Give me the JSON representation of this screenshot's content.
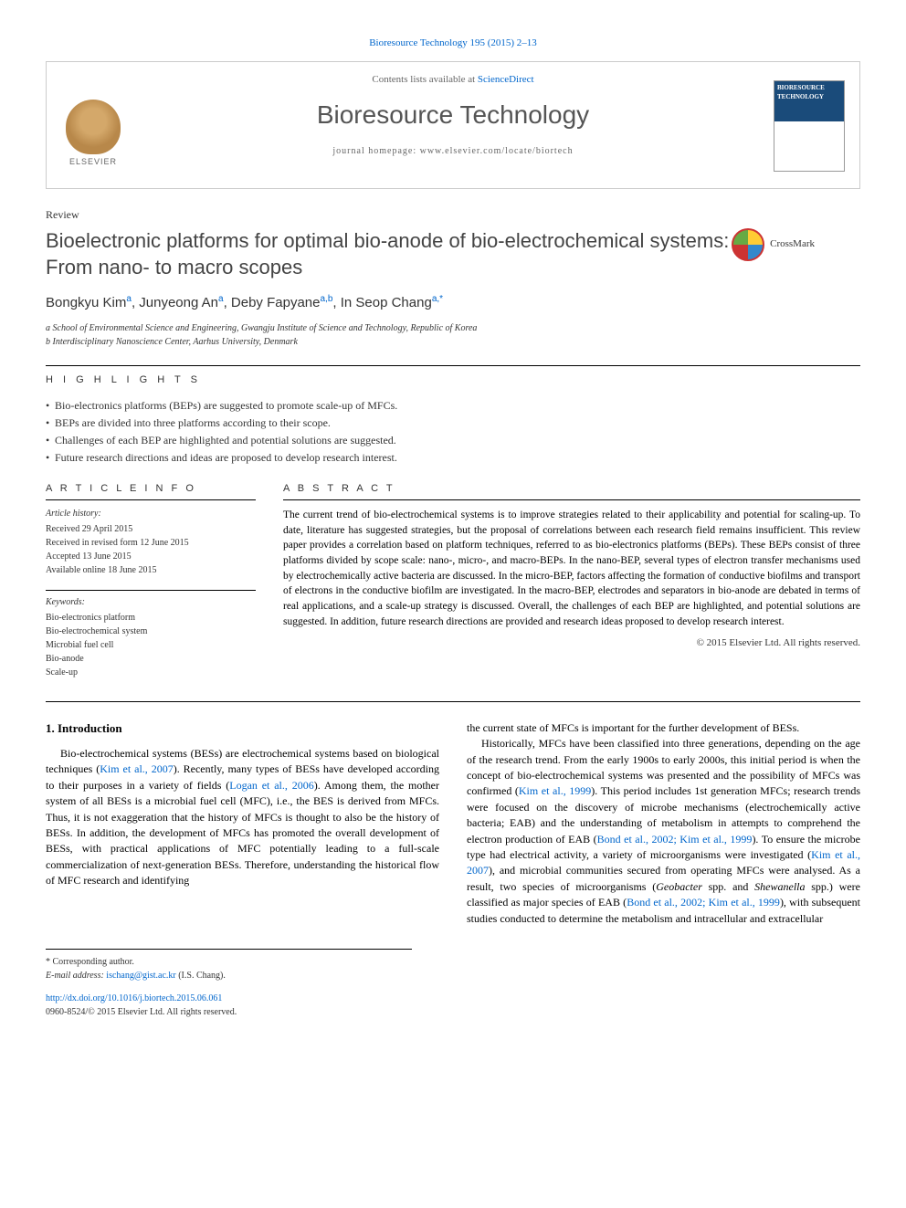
{
  "citation": "Bioresource Technology 195 (2015) 2–13",
  "header": {
    "contents_prefix": "Contents lists available at ",
    "contents_link": "ScienceDirect",
    "journal": "Bioresource Technology",
    "homepage_prefix": "journal homepage: ",
    "homepage_url": "www.elsevier.com/locate/biortech",
    "publisher_logo_text": "ELSEVIER",
    "cover_title": "BIORESOURCE TECHNOLOGY"
  },
  "article": {
    "type": "Review",
    "title": "Bioelectronic platforms for optimal bio-anode of bio-electrochemical systems: From nano- to macro scopes",
    "crossmark": "CrossMark",
    "authors_html": "Bongkyu Kim<sup>a</sup>, Junyeong An<sup>a</sup>, Deby Fapyane<sup>a,b</sup>, In Seop Chang<sup>a,*</sup>",
    "affiliations": [
      "a School of Environmental Science and Engineering, Gwangju Institute of Science and Technology, Republic of Korea",
      "b Interdisciplinary Nanoscience Center, Aarhus University, Denmark"
    ]
  },
  "highlights": {
    "heading": "H I G H L I G H T S",
    "items": [
      "Bio-electronics platforms (BEPs) are suggested to promote scale-up of MFCs.",
      "BEPs are divided into three platforms according to their scope.",
      "Challenges of each BEP are highlighted and potential solutions are suggested.",
      "Future research directions and ideas are proposed to develop research interest."
    ]
  },
  "info": {
    "heading": "A R T I C L E   I N F O",
    "history_label": "Article history:",
    "history": [
      "Received 29 April 2015",
      "Received in revised form 12 June 2015",
      "Accepted 13 June 2015",
      "Available online 18 June 2015"
    ],
    "keywords_label": "Keywords:",
    "keywords": [
      "Bio-electronics platform",
      "Bio-electrochemical system",
      "Microbial fuel cell",
      "Bio-anode",
      "Scale-up"
    ]
  },
  "abstract": {
    "heading": "A B S T R A C T",
    "text": "The current trend of bio-electrochemical systems is to improve strategies related to their applicability and potential for scaling-up. To date, literature has suggested strategies, but the proposal of correlations between each research field remains insufficient. This review paper provides a correlation based on platform techniques, referred to as bio-electronics platforms (BEPs). These BEPs consist of three platforms divided by scope scale: nano-, micro-, and macro-BEPs. In the nano-BEP, several types of electron transfer mechanisms used by electrochemically active bacteria are discussed. In the micro-BEP, factors affecting the formation of conductive biofilms and transport of electrons in the conductive biofilm are investigated. In the macro-BEP, electrodes and separators in bio-anode are debated in terms of real applications, and a scale-up strategy is discussed. Overall, the challenges of each BEP are highlighted, and potential solutions are suggested. In addition, future research directions are provided and research ideas proposed to develop research interest.",
    "copyright": "© 2015 Elsevier Ltd. All rights reserved."
  },
  "body": {
    "section_heading": "1. Introduction",
    "col1_para1_pre": "Bio-electrochemical systems (BESs) are electrochemical systems based on biological techniques (",
    "col1_cite1": "Kim et al., 2007",
    "col1_para1_mid1": "). Recently, many types of BESs have developed according to their purposes in a variety of fields (",
    "col1_cite2": "Logan et al., 2006",
    "col1_para1_post": "). Among them, the mother system of all BESs is a microbial fuel cell (MFC), i.e., the BES is derived from MFCs. Thus, it is not exaggeration that the history of MFCs is thought to also be the history of BESs. In addition, the development of MFCs has promoted the overall development of BESs, with practical applications of MFC potentially leading to a full-scale commercialization of next-generation BESs. Therefore, understanding the historical flow of MFC research and identifying",
    "col2_para1": "the current state of MFCs is important for the further development of BESs.",
    "col2_para2_pre": "Historically, MFCs have been classified into three generations, depending on the age of the research trend. From the early 1900s to early 2000s, this initial period is when the concept of bio-electrochemical systems was presented and the possibility of MFCs was confirmed (",
    "col2_cite1": "Kim et al., 1999",
    "col2_para2_mid1": "). This period includes 1st generation MFCs; research trends were focused on the discovery of microbe mechanisms (electrochemically active bacteria; EAB) and the understanding of metabolism in attempts to comprehend the electron production of EAB (",
    "col2_cite2": "Bond et al., 2002; Kim et al., 1999",
    "col2_para2_mid2": "). To ensure the microbe type had electrical activity, a variety of microorganisms were investigated (",
    "col2_cite3": "Kim et al., 2007",
    "col2_para2_mid3": "), and microbial communities secured from operating MFCs were analysed. As a result, two species of microorganisms (",
    "col2_species1": "Geobacter",
    "col2_para2_mid4": " spp. and ",
    "col2_species2": "Shewanella",
    "col2_para2_mid5": " spp.) were classified as major species of EAB (",
    "col2_cite4": "Bond et al., 2002; Kim et al., 1999",
    "col2_para2_post": "), with subsequent studies conducted to determine the metabolism and intracellular and extracellular"
  },
  "footer": {
    "corresponding": "* Corresponding author.",
    "email_label": "E-mail address: ",
    "email": "ischang@gist.ac.kr",
    "email_suffix": " (I.S. Chang).",
    "doi": "http://dx.doi.org/10.1016/j.biortech.2015.06.061",
    "issn_line": "0960-8524/© 2015 Elsevier Ltd. All rights reserved."
  }
}
